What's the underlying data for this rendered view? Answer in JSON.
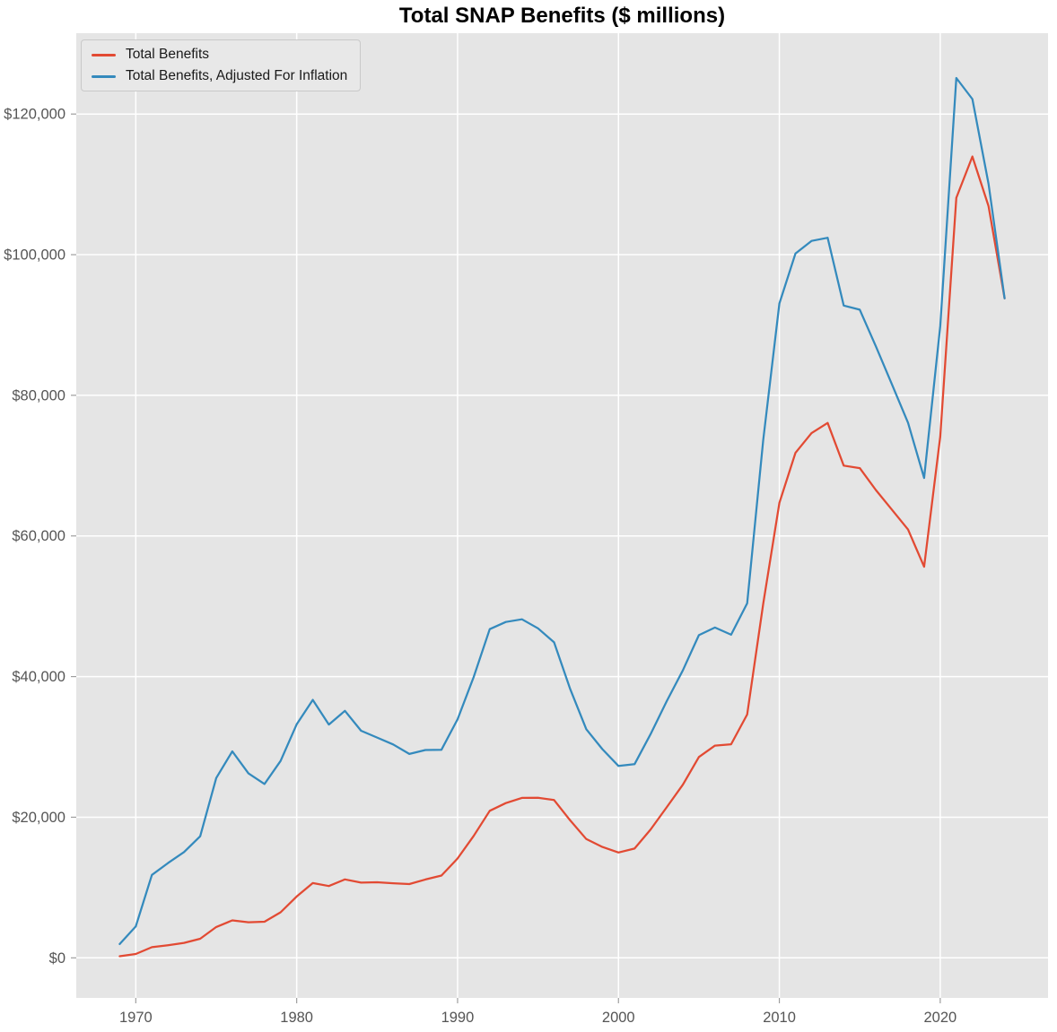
{
  "chart_data": {
    "type": "line",
    "title": "Total SNAP Benefits ($ millions)",
    "xlabel": "",
    "ylabel": "",
    "grid": true,
    "legend_position": "upper left",
    "background": "#E5E5E5",
    "grid_color": "#FFFFFF",
    "tick_color": "#555555",
    "tick_mark_color": "#9E9E9E",
    "xlim": [
      1966.3,
      2026.7
    ],
    "ylim": [
      -5700,
      131500
    ],
    "x_ticks": [
      1970,
      1980,
      1990,
      2000,
      2010,
      2020
    ],
    "y_ticks": [
      0,
      20000,
      40000,
      60000,
      80000,
      100000,
      120000
    ],
    "y_tick_labels": [
      "$0",
      "$20,000",
      "$40,000",
      "$60,000",
      "$80,000",
      "$100,000",
      "$120,000"
    ],
    "x": [
      1969,
      1970,
      1971,
      1972,
      1973,
      1974,
      1975,
      1976,
      1977,
      1978,
      1979,
      1980,
      1981,
      1982,
      1983,
      1984,
      1985,
      1986,
      1987,
      1988,
      1989,
      1990,
      1991,
      1992,
      1993,
      1994,
      1995,
      1996,
      1997,
      1998,
      1999,
      2000,
      2001,
      2002,
      2003,
      2004,
      2005,
      2006,
      2007,
      2008,
      2009,
      2010,
      2011,
      2012,
      2013,
      2014,
      2015,
      2016,
      2017,
      2018,
      2019,
      2020,
      2021,
      2022,
      2023,
      2024
    ],
    "series": [
      {
        "name": "Total Benefits",
        "color": "#E24A33",
        "values": [
          229,
          551,
          1523,
          1797,
          2131,
          2718,
          4386,
          5327,
          5067,
          5139,
          6480,
          8721,
          10630,
          10208,
          11152,
          10696,
          10744,
          10605,
          10500,
          11149,
          11702,
          14143,
          17339,
          20906,
          22006,
          22749,
          22764,
          22440,
          19549,
          16891,
          15769,
          14983,
          15547,
          18256,
          21404,
          24619,
          28568,
          30187,
          30373,
          34608,
          50360,
          64702,
          71810,
          74619,
          76066,
          69999,
          69645,
          66539,
          63711,
          60906,
          55618,
          74150,
          108095,
          113952,
          106900,
          93800
        ]
      },
      {
        "name": "Total Benefits, Adjusted For Inflation",
        "color": "#348ABD",
        "values": [
          1960,
          4460,
          11800,
          13480,
          15050,
          17290,
          25580,
          29370,
          26230,
          24730,
          28000,
          33200,
          36680,
          33180,
          35130,
          32300,
          31330,
          30350,
          29000,
          29560,
          29600,
          33940,
          39930,
          46740,
          47770,
          48150,
          46860,
          44870,
          38210,
          32510,
          29690,
          27290,
          27540,
          31830,
          36490,
          40880,
          45890,
          46970,
          45960,
          50420,
          73650,
          93060,
          100160,
          101950,
          102400,
          92760,
          92180,
          86970,
          81540,
          76090,
          68240,
          89870,
          125130,
          122130,
          110080,
          93800
        ]
      }
    ]
  }
}
